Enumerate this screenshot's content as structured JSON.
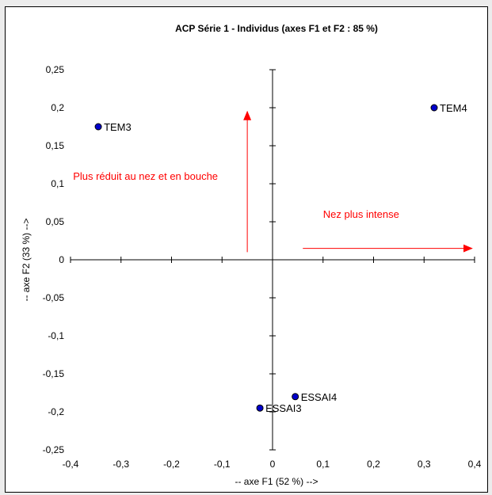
{
  "chart_data": {
    "type": "scatter",
    "title": "ACP Série 1 - Individus (axes F1 et F2 : 85 %)",
    "xlabel": "-- axe F1 (52 %) -->",
    "ylabel": "-- axe F2 (33 %) -->",
    "xlim": [
      -0.4,
      0.4
    ],
    "ylim": [
      -0.25,
      0.25
    ],
    "x_ticks": [
      "-0,4",
      "-0,3",
      "-0,2",
      "-0,1",
      "0",
      "0,1",
      "0,2",
      "0,3",
      "0,4"
    ],
    "y_ticks": [
      "0,25",
      "0,2",
      "0,15",
      "0,1",
      "0,05",
      "0",
      "-0,05",
      "-0,1",
      "-0,15",
      "-0,2",
      "-0,25"
    ],
    "grid": false,
    "axes_cross_at_origin": true,
    "point_color": "#0000cc",
    "points": [
      {
        "label": "TEM3",
        "x": -0.345,
        "y": 0.175
      },
      {
        "label": "TEM4",
        "x": 0.32,
        "y": 0.2
      },
      {
        "label": "ESSAI4",
        "x": 0.045,
        "y": -0.18
      },
      {
        "label": "ESSAI3",
        "x": -0.025,
        "y": -0.195
      }
    ],
    "annotations": [
      {
        "text": "Plus réduit au nez et en bouche",
        "color": "#ff0000",
        "arrow": {
          "from": [
            -0.05,
            0.01
          ],
          "to": [
            -0.05,
            0.195
          ]
        },
        "text_at": [
          -0.395,
          0.105
        ]
      },
      {
        "text": "Nez plus intense",
        "color": "#ff0000",
        "arrow": {
          "from": [
            0.06,
            0.015
          ],
          "to": [
            0.395,
            0.015
          ]
        },
        "text_at": [
          0.1,
          0.055
        ]
      }
    ]
  }
}
